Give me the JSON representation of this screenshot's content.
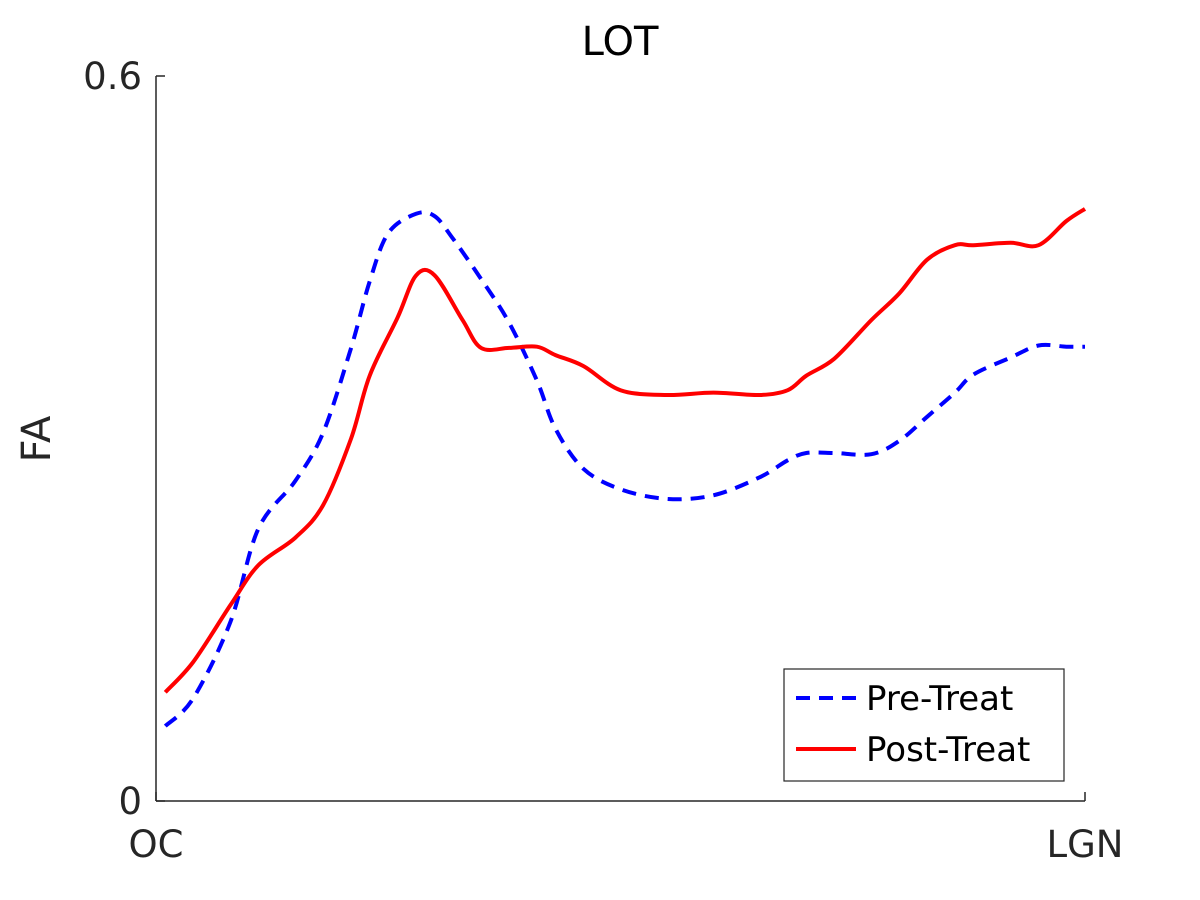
{
  "chart_data": {
    "type": "line",
    "title": "LOT",
    "xlabel": "",
    "ylabel": "FA",
    "xlim": [
      0,
      1
    ],
    "ylim": [
      0,
      0.6
    ],
    "x_ticks": [
      {
        "value": 0,
        "label": "OC"
      },
      {
        "value": 1,
        "label": "LGN"
      }
    ],
    "y_ticks": [
      {
        "value": 0,
        "label": "0"
      },
      {
        "value": 0.6,
        "label": "0.6"
      }
    ],
    "grid": false,
    "legend_position": "bottom-right",
    "series": [
      {
        "name": "Pre-Treat",
        "color": "#0000ff",
        "style": "dashed",
        "x": [
          0.01,
          0.04,
          0.08,
          0.11,
          0.15,
          0.18,
          0.21,
          0.23,
          0.25,
          0.28,
          0.3,
          0.32,
          0.35,
          0.38,
          0.41,
          0.43,
          0.46,
          0.5,
          0.55,
          0.6,
          0.65,
          0.68,
          0.7,
          0.73,
          0.77,
          0.8,
          0.83,
          0.86,
          0.88,
          0.92,
          0.95,
          0.98,
          1.0
        ],
        "y": [
          0.062,
          0.085,
          0.148,
          0.225,
          0.265,
          0.305,
          0.375,
          0.43,
          0.47,
          0.486,
          0.484,
          0.465,
          0.432,
          0.396,
          0.348,
          0.308,
          0.275,
          0.258,
          0.25,
          0.253,
          0.268,
          0.282,
          0.288,
          0.288,
          0.287,
          0.298,
          0.318,
          0.338,
          0.353,
          0.367,
          0.377,
          0.376,
          0.376
        ]
      },
      {
        "name": "Post-Treat",
        "color": "#ff0000",
        "style": "solid",
        "x": [
          0.01,
          0.04,
          0.08,
          0.11,
          0.15,
          0.18,
          0.21,
          0.23,
          0.26,
          0.28,
          0.3,
          0.33,
          0.35,
          0.38,
          0.41,
          0.43,
          0.46,
          0.5,
          0.55,
          0.6,
          0.65,
          0.68,
          0.7,
          0.73,
          0.77,
          0.8,
          0.83,
          0.86,
          0.88,
          0.92,
          0.95,
          0.98,
          1.0
        ],
        "y": [
          0.09,
          0.115,
          0.162,
          0.195,
          0.218,
          0.245,
          0.3,
          0.352,
          0.4,
          0.435,
          0.435,
          0.398,
          0.375,
          0.375,
          0.376,
          0.369,
          0.36,
          0.34,
          0.336,
          0.338,
          0.336,
          0.34,
          0.352,
          0.366,
          0.398,
          0.42,
          0.448,
          0.46,
          0.46,
          0.462,
          0.46,
          0.48,
          0.49
        ]
      }
    ]
  }
}
